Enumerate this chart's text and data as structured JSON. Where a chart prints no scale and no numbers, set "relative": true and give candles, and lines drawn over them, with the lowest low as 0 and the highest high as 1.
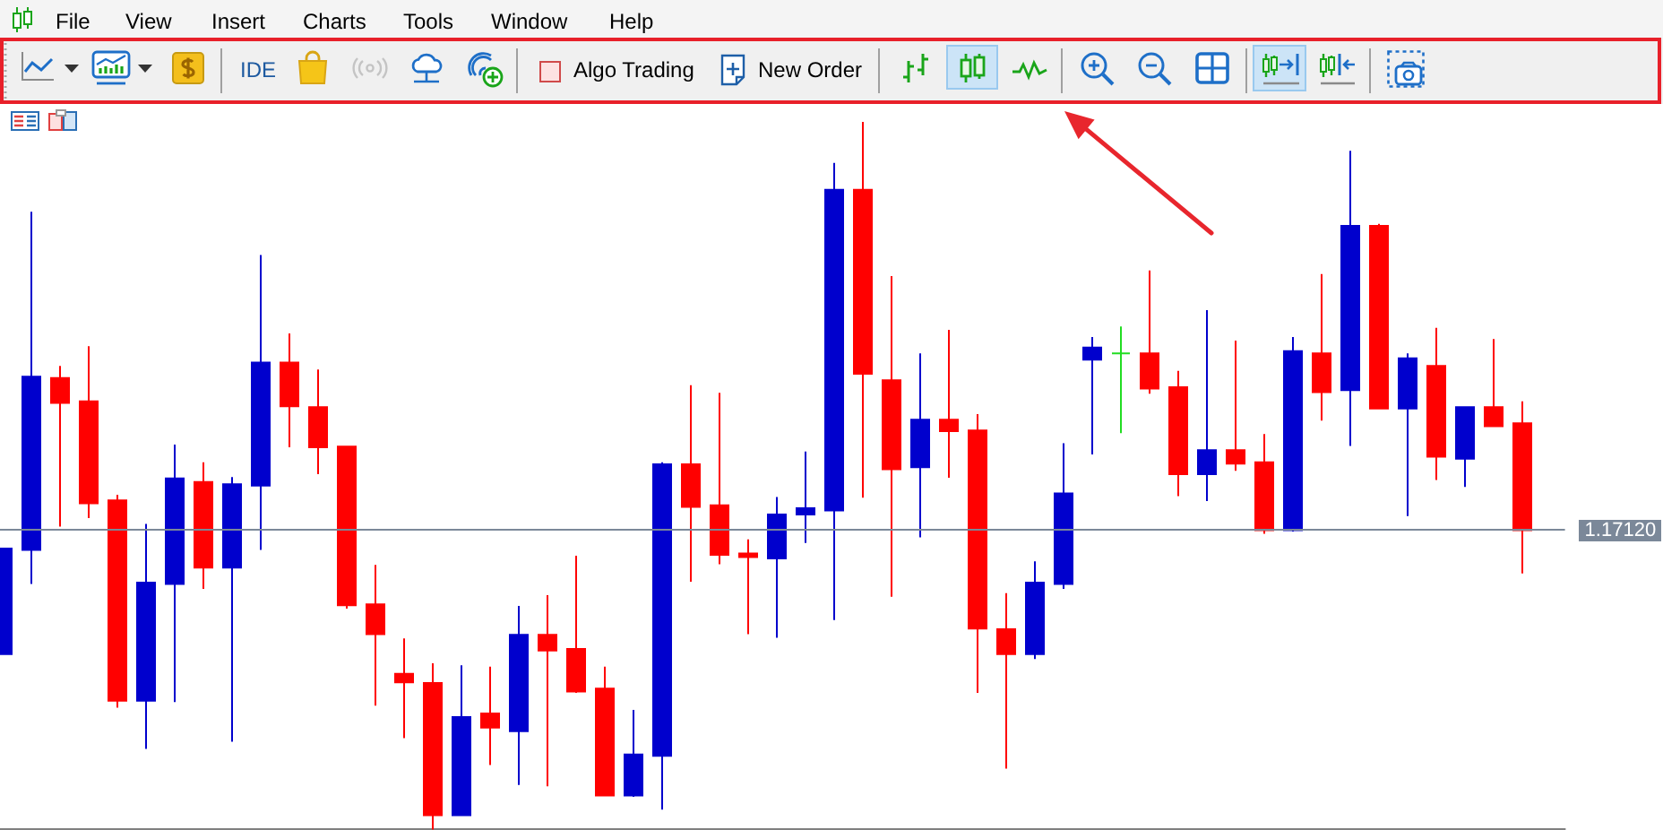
{
  "chart_data": {
    "type": "candlestick",
    "categories": [
      null,
      null,
      null,
      null,
      null,
      null,
      null,
      null,
      null,
      null,
      null,
      null,
      null,
      null,
      null,
      null,
      null,
      null,
      null,
      null,
      null,
      null,
      null,
      null,
      null,
      null,
      null,
      null,
      null,
      null,
      null,
      null,
      null,
      null,
      null,
      null,
      null,
      null,
      null,
      null,
      null,
      null,
      null,
      null,
      null,
      null,
      null,
      null,
      null,
      null,
      null,
      null,
      null,
      null
    ],
    "ohlc": [
      [
        0.248,
        0.397,
        0.248,
        0.397
      ],
      [
        0.395,
        0.873,
        0.347,
        0.64
      ],
      [
        0.638,
        0.655,
        0.428,
        0.603
      ],
      [
        0.605,
        0.683,
        0.44,
        0.461
      ],
      [
        0.465,
        0.473,
        0.172,
        0.182
      ],
      [
        0.182,
        0.432,
        0.114,
        0.349
      ],
      [
        0.347,
        0.544,
        0.18,
        0.496
      ],
      [
        0.491,
        0.519,
        0.34,
        0.37
      ],
      [
        0.37,
        0.498,
        0.124,
        0.488
      ],
      [
        0.486,
        0.812,
        0.395,
        0.66
      ],
      [
        0.66,
        0.701,
        0.54,
        0.598
      ],
      [
        0.597,
        0.65,
        0.502,
        0.54
      ],
      [
        0.541,
        0.541,
        0.312,
        0.317
      ],
      [
        0.318,
        0.374,
        0.175,
        0.276
      ],
      [
        0.22,
        0.27,
        0.129,
        0.208
      ],
      [
        0.207,
        0.235,
        0,
        0.02
      ],
      [
        0.02,
        0.232,
        0.02,
        0.159
      ],
      [
        0.164,
        0.23,
        0.091,
        0.144
      ],
      [
        0.139,
        0.316,
        0.063,
        0.275
      ],
      [
        0.275,
        0.331,
        0.061,
        0.253
      ],
      [
        0.255,
        0.387,
        0.193,
        0.195
      ],
      [
        0.199,
        0.23,
        0.048,
        0.048
      ],
      [
        0.048,
        0.169,
        0.046,
        0.106
      ],
      [
        0.104,
        0.519,
        0.028,
        0.516
      ],
      [
        0.516,
        0.628,
        0.35,
        0.456
      ],
      [
        0.458,
        0.617,
        0.375,
        0.388
      ],
      [
        0.39,
        0.41,
        0.276,
        0.385
      ],
      [
        0.383,
        0.47,
        0.271,
        0.445
      ],
      [
        0.445,
        0.534,
        0.405,
        0.454
      ],
      [
        0.451,
        0.942,
        0.296,
        0.904
      ],
      [
        0.904,
        1,
        0.469,
        0.644
      ],
      [
        0.635,
        0.782,
        0.329,
        0.509
      ],
      [
        0.512,
        0.673,
        0.413,
        0.579
      ],
      [
        0.579,
        0.706,
        0.497,
        0.563
      ],
      [
        0.564,
        0.587,
        0.193,
        0.284
      ],
      [
        0.283,
        0.334,
        0.086,
        0.248
      ],
      [
        0.248,
        0.379,
        0.241,
        0.349
      ],
      [
        0.347,
        0.546,
        0.34,
        0.475
      ],
      [
        0.664,
        0.696,
        0.53,
        0.681
      ],
      [
        0.673,
        0.711,
        0.56,
        0.673
      ],
      [
        0.673,
        0.79,
        0.616,
        0.623
      ],
      [
        0.625,
        0.648,
        0.471,
        0.502
      ],
      [
        0.502,
        0.734,
        0.464,
        0.536
      ],
      [
        0.536,
        0.691,
        0.507,
        0.517
      ],
      [
        0.519,
        0.559,
        0.418,
        0.423
      ],
      [
        0.423,
        0.696,
        0.421,
        0.676
      ],
      [
        0.673,
        0.785,
        0.578,
        0.618
      ],
      [
        0.621,
        0.959,
        0.542,
        0.853
      ],
      [
        0.853,
        0.856,
        0.595,
        0.595
      ],
      [
        0.595,
        0.673,
        0.443,
        0.666
      ],
      [
        0.655,
        0.709,
        0.494,
        0.527
      ],
      [
        0.524,
        0.597,
        0.484,
        0.597
      ],
      [
        0.597,
        0.693,
        0.57,
        0.57
      ],
      [
        0.574,
        0.605,
        0.362,
        0.423
      ]
    ],
    "colors": [
      "#0000cd",
      "#0000cd",
      "#ff0000",
      "#ff0000",
      "#ff0000",
      "#0000cd",
      "#0000cd",
      "#ff0000",
      "#0000cd",
      "#0000cd",
      "#ff0000",
      "#ff0000",
      "#ff0000",
      "#ff0000",
      "#ff0000",
      "#ff0000",
      "#0000cd",
      "#ff0000",
      "#0000cd",
      "#ff0000",
      "#ff0000",
      "#ff0000",
      "#0000cd",
      "#0000cd",
      "#ff0000",
      "#ff0000",
      "#ff0000",
      "#0000cd",
      "#0000cd",
      "#0000cd",
      "#ff0000",
      "#ff0000",
      "#0000cd",
      "#ff0000",
      "#ff0000",
      "#ff0000",
      "#0000cd",
      "#0000cd",
      "#0000cd",
      "#22dd22",
      "#ff0000",
      "#ff0000",
      "#0000cd",
      "#ff0000",
      "#ff0000",
      "#0000cd",
      "#ff0000",
      "#0000cd",
      "#ff0000",
      "#0000cd",
      "#ff0000",
      "#0000cd",
      "#ff0000",
      "#ff0000"
    ],
    "relative": true,
    "tick_labels": false,
    "ref_lines": [
      {
        "axis": "y",
        "value": 0.423,
        "color": "#7b8899"
      }
    ],
    "annotations": [
      "File",
      "View",
      "Insert",
      "Charts",
      "Tools",
      "Window",
      "Help",
      "IDE",
      "Algo Trading",
      "New Order",
      "1.17120"
    ]
  }
}
